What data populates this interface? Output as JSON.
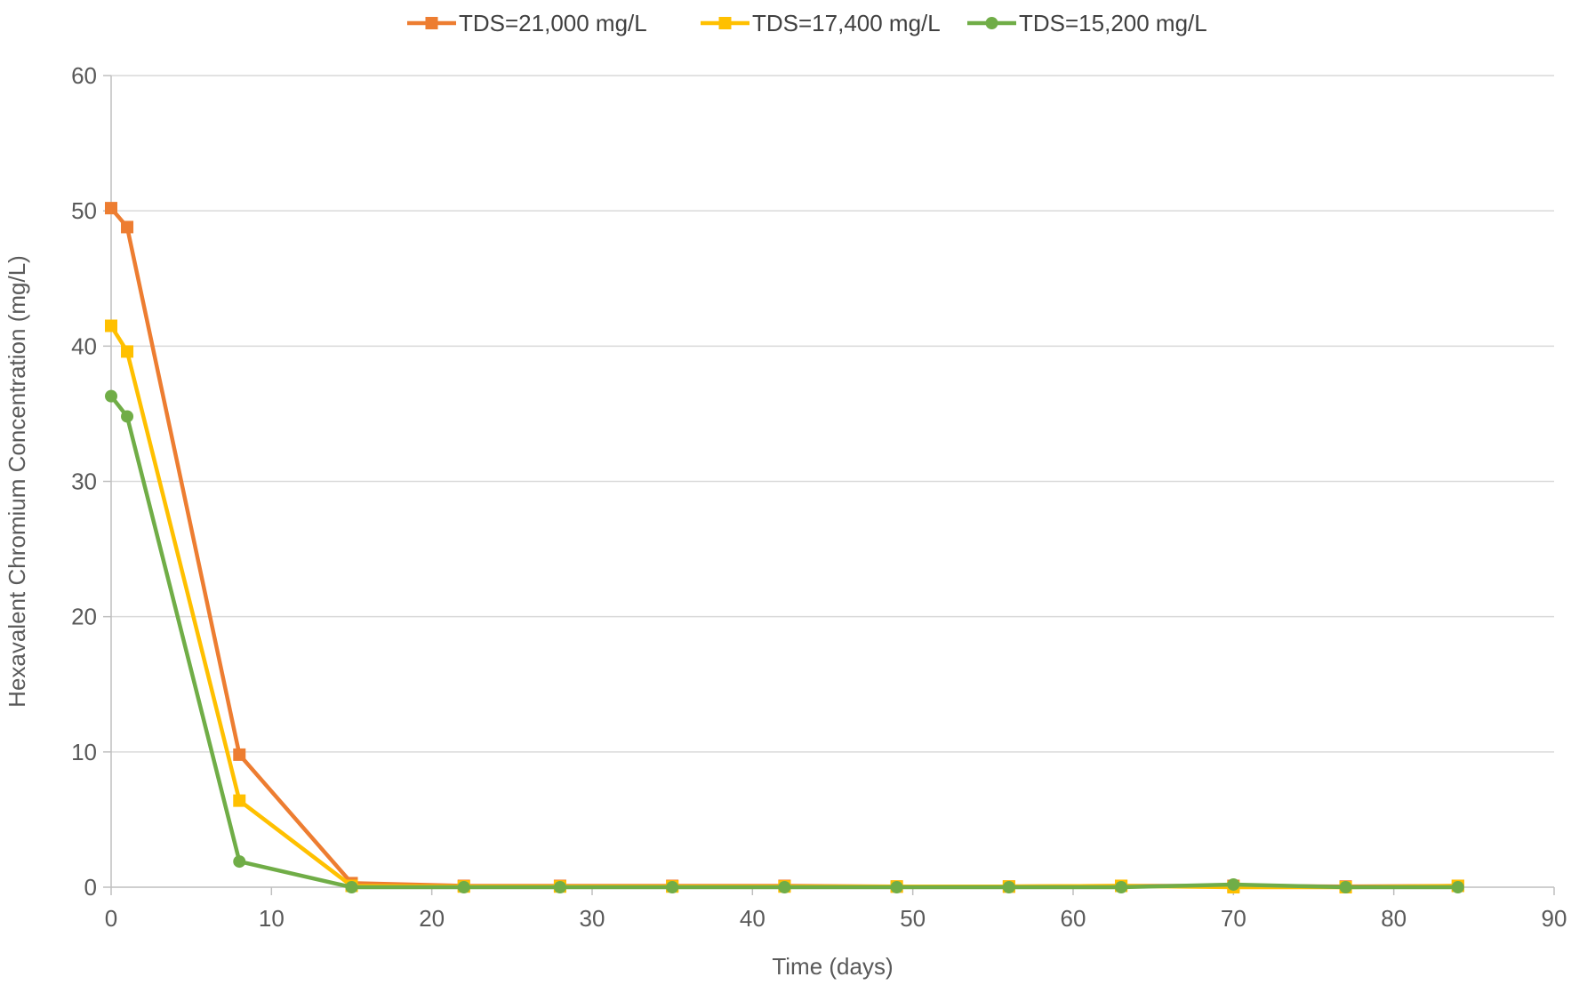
{
  "chart_data": {
    "type": "line",
    "title": "",
    "xlabel": "Time (days)",
    "ylabel": "Hexavalent Chromium Concentration (mg/L)",
    "xlim": [
      0,
      90
    ],
    "ylim": [
      0,
      60
    ],
    "xticks": [
      0,
      10,
      20,
      30,
      40,
      50,
      60,
      70,
      80,
      90
    ],
    "yticks": [
      0,
      10,
      20,
      30,
      40,
      50,
      60
    ],
    "grid": "horizontal",
    "legend_position": "top",
    "series": [
      {
        "name": "TDS=21,000 mg/L",
        "color": "#ED7D31",
        "marker": "square",
        "x": [
          0,
          1,
          8,
          15,
          22,
          28,
          35,
          42,
          49,
          56,
          63,
          70,
          77,
          84
        ],
        "y": [
          50.2,
          48.8,
          9.8,
          0.3,
          0.1,
          0.1,
          0.1,
          0.1,
          0.05,
          0.05,
          0.1,
          0.1,
          0.05,
          0.1
        ]
      },
      {
        "name": "TDS=17,400 mg/L",
        "color": "#FFC000",
        "marker": "square",
        "x": [
          0,
          1,
          8,
          15,
          22,
          28,
          35,
          42,
          49,
          56,
          63,
          70,
          77,
          84
        ],
        "y": [
          41.5,
          39.6,
          6.4,
          0.1,
          0.05,
          0.05,
          0.05,
          0.05,
          0.05,
          0.05,
          0.1,
          0.0,
          0.0,
          0.1
        ]
      },
      {
        "name": "TDS=15,200 mg/L",
        "color": "#70AD47",
        "marker": "circle",
        "x": [
          0,
          1,
          8,
          15,
          22,
          28,
          35,
          42,
          49,
          56,
          63,
          70,
          77,
          84
        ],
        "y": [
          36.3,
          34.8,
          1.9,
          0.0,
          0.0,
          0.0,
          0.0,
          0.0,
          0.0,
          0.0,
          0.0,
          0.2,
          0.0,
          0.0
        ]
      }
    ]
  }
}
